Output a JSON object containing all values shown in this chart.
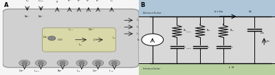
{
  "fig_width": 4.0,
  "fig_height": 1.09,
  "dpi": 100,
  "bg_color": "#f5f5f5",
  "panel_A": {
    "label": "A",
    "cell_color": "#d0d0d0",
    "cell_border": "#999999",
    "nsr_color": "#d8d8a0",
    "nsr_border": "#999977",
    "bg_color": "#f0f0f0"
  },
  "panel_B": {
    "label": "B",
    "extracellular_color": "#aec6d8",
    "intracellular_color": "#b8d0a0",
    "circuit_color": "#d8d8d8",
    "extracellular_text": "Extracellular",
    "intracellular_text": "Intracellular"
  }
}
